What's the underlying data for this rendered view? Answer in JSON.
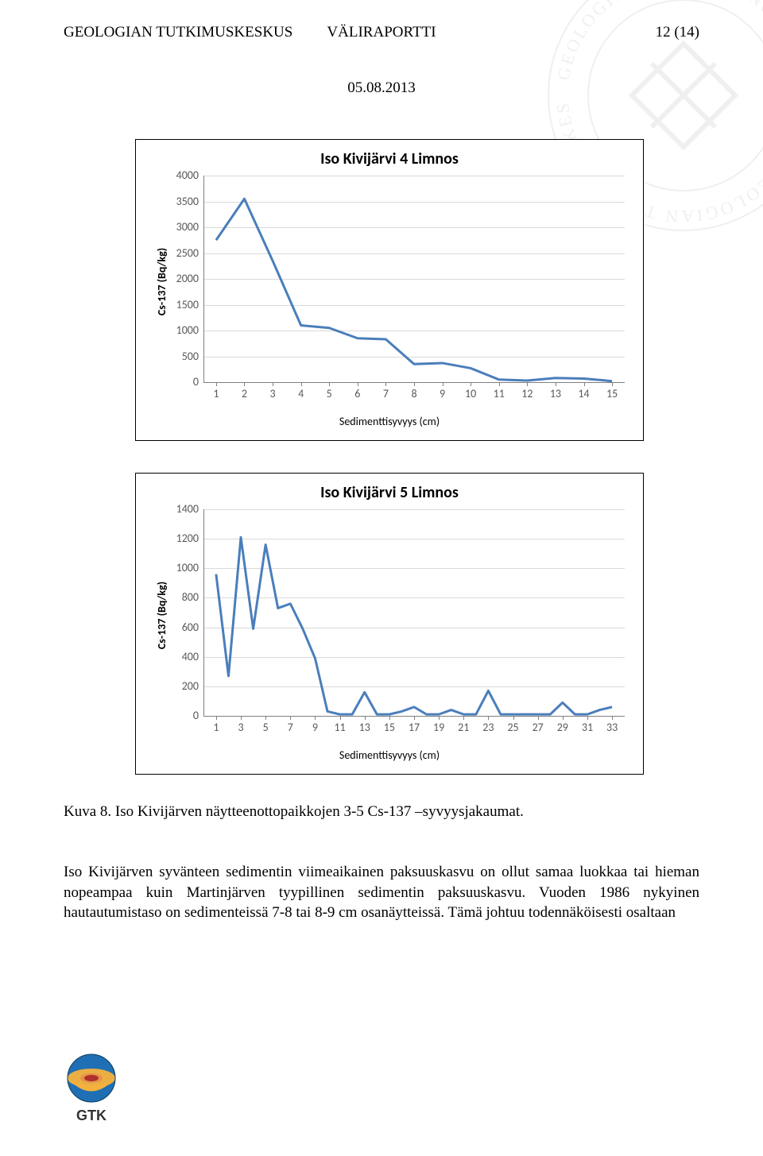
{
  "header": {
    "left": "GEOLOGIAN TUTKIMUSKESKUS",
    "center": "VÄLIRAPORTTI",
    "right": "12 (14)"
  },
  "date": "05.08.2013",
  "chart1": {
    "type": "line",
    "title": "Iso Kivijärvi 4 Limnos",
    "title_fontsize": 20,
    "ylabel": "Cs-137 (Bq/kg)",
    "xlabel": "Sedimenttisyvyys (cm)",
    "label_fontsize": 14,
    "categories": [
      "1",
      "2",
      "3",
      "4",
      "5",
      "6",
      "7",
      "8",
      "9",
      "10",
      "11",
      "12",
      "13",
      "14",
      "15"
    ],
    "values": [
      2750,
      3550,
      2350,
      1100,
      1050,
      850,
      830,
      350,
      370,
      270,
      50,
      30,
      80,
      70,
      20
    ],
    "ylim": [
      0,
      4000
    ],
    "ytick_step": 500,
    "yticks": [
      "0",
      "500",
      "1000",
      "1500",
      "2000",
      "2500",
      "3000",
      "3500",
      "4000"
    ],
    "line_color": "#4a7ebb",
    "line_width": 3,
    "grid_color": "#d9d9d9",
    "axis_color": "#808080",
    "background_color": "#ffffff",
    "tick_fontsize": 14,
    "tick_color": "#595959"
  },
  "chart2": {
    "type": "line",
    "title": "Iso Kivijärvi 5 Limnos",
    "title_fontsize": 20,
    "ylabel": "Cs-137 (Bq/kg)",
    "xlabel": "Sedimenttisyvyys (cm)",
    "label_fontsize": 14,
    "categories": [
      "1",
      "3",
      "5",
      "7",
      "9",
      "11",
      "13",
      "15",
      "17",
      "19",
      "21",
      "23",
      "25",
      "27",
      "29",
      "31",
      "33"
    ],
    "values_x": [
      1,
      2,
      3,
      4,
      5,
      6,
      7,
      8,
      9,
      10,
      11,
      12,
      13,
      14,
      15,
      16,
      17,
      18,
      19,
      20,
      21,
      22,
      23,
      24,
      25,
      26,
      27,
      28,
      29,
      30,
      31,
      32,
      33
    ],
    "values": [
      960,
      270,
      1210,
      590,
      1160,
      730,
      760,
      590,
      390,
      30,
      10,
      10,
      160,
      10,
      10,
      30,
      60,
      10,
      10,
      40,
      10,
      10,
      170,
      10,
      10,
      10,
      10,
      10,
      90,
      10,
      10,
      40,
      60
    ],
    "ylim": [
      0,
      1400
    ],
    "ytick_step": 200,
    "yticks": [
      "0",
      "200",
      "400",
      "600",
      "800",
      "1000",
      "1200",
      "1400"
    ],
    "line_color": "#4a7ebb",
    "line_width": 3,
    "grid_color": "#d9d9d9",
    "axis_color": "#808080",
    "background_color": "#ffffff",
    "tick_fontsize": 14,
    "tick_color": "#595959"
  },
  "caption": "Kuva 8. Iso Kivijärven näytteenottopaikkojen 3-5 Cs-137 –syvyysjakaumat.",
  "paragraph": "Iso Kivijärven syvänteen sedimentin viimeaikainen paksuuskasvu on ollut samaa luokkaa tai hieman nopeampaa kuin Martinjärven tyypillinen sedimentin paksuuskasvu. Vuoden 1986 nykyinen hautautumistaso on sedimenteissä 7-8 tai 8-9 cm osanäytteissä. Tämä johtuu todennäköisesti osaltaan",
  "logo_text": "GTK",
  "logo_colors": {
    "outer": "#1f6fb5",
    "mantle": "#f5b13d",
    "core": "#b0312b"
  }
}
